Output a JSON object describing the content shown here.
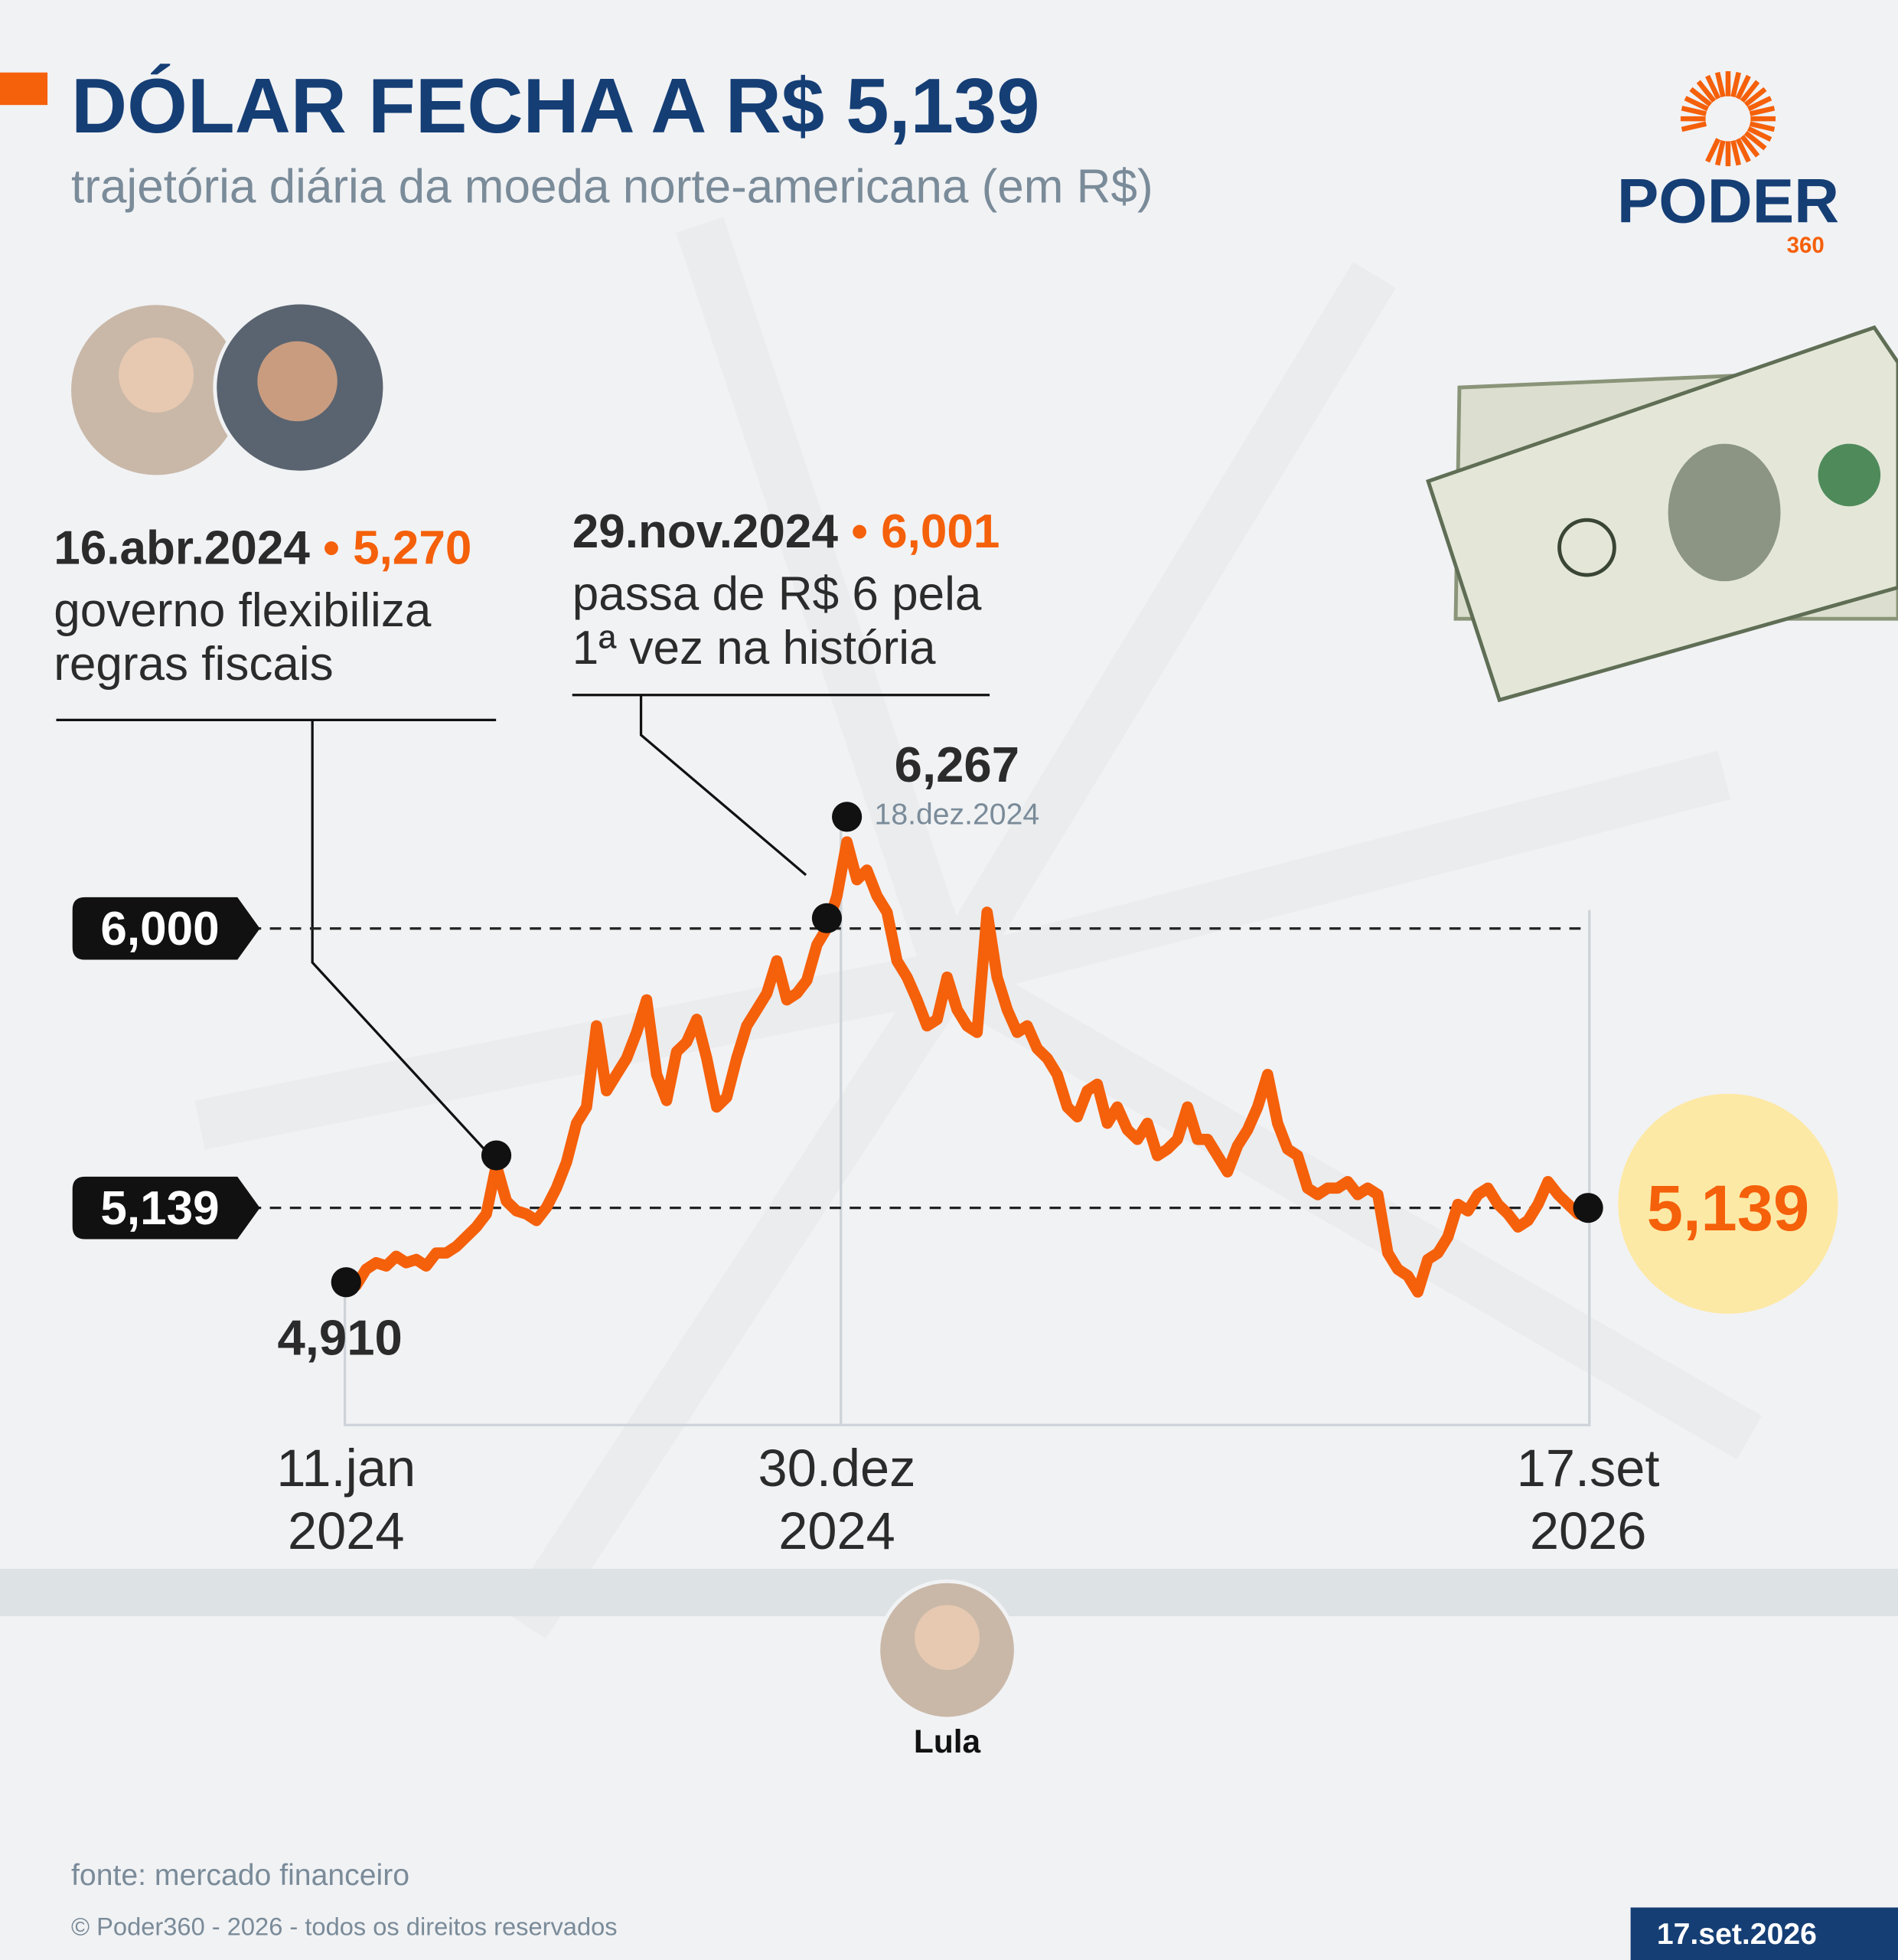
{
  "header": {
    "title": "DÓLAR FECHA A R$ 5,139",
    "subtitle": "trajetória diária da moeda norte-americana (em R$)",
    "logo": "PODER",
    "logo_sub": "360"
  },
  "chart_data": {
    "type": "line",
    "categories": [
      "11.jan\n2024",
      null,
      null,
      null,
      null,
      null,
      null,
      null,
      null,
      null,
      null,
      null,
      null,
      null,
      null,
      null,
      null,
      null,
      null,
      null,
      null,
      null,
      null,
      null,
      null,
      null,
      null,
      null,
      null,
      null,
      null,
      null,
      null,
      null,
      null,
      null,
      null,
      null,
      null,
      null,
      null,
      null,
      null,
      null,
      null,
      null,
      null,
      null,
      null,
      "30.dez\n2024",
      null,
      null,
      null,
      null,
      null,
      null,
      null,
      null,
      null,
      null,
      null,
      null,
      null,
      null,
      null,
      null,
      null,
      null,
      null,
      null,
      null,
      null,
      null,
      null,
      null,
      null,
      null,
      null,
      null,
      null,
      null,
      null,
      null,
      null,
      null,
      null,
      null,
      null,
      null,
      null,
      null,
      null,
      null,
      null,
      null,
      null,
      null,
      null,
      null,
      null,
      null,
      null,
      null,
      null,
      null,
      null,
      null,
      null,
      null,
      null,
      null,
      null,
      null,
      null,
      null,
      null,
      null,
      null,
      null,
      null,
      null,
      null,
      null,
      null,
      "17.set\n2026"
    ],
    "series": [
      {
        "name": "dólar",
        "color": "#f5600a",
        "values": [
          4.91,
          4.9,
          4.95,
          4.97,
          4.96,
          4.99,
          4.97,
          4.98,
          4.96,
          5.0,
          5.0,
          5.02,
          5.05,
          5.08,
          5.12,
          5.27,
          5.16,
          5.13,
          5.12,
          5.1,
          5.14,
          5.2,
          5.28,
          5.4,
          5.45,
          5.7,
          5.5,
          5.55,
          5.6,
          5.68,
          5.78,
          5.55,
          5.47,
          5.62,
          5.65,
          5.72,
          5.6,
          5.45,
          5.48,
          5.6,
          5.7,
          5.75,
          5.8,
          5.9,
          5.78,
          5.8,
          5.84,
          5.95,
          6.001,
          6.1,
          6.267,
          6.15,
          6.18,
          6.1,
          6.05,
          5.9,
          5.85,
          5.78,
          5.7,
          5.72,
          5.85,
          5.75,
          5.7,
          5.68,
          6.05,
          5.85,
          5.75,
          5.68,
          5.7,
          5.63,
          5.6,
          5.55,
          5.45,
          5.42,
          5.5,
          5.52,
          5.4,
          5.45,
          5.38,
          5.35,
          5.4,
          5.3,
          5.32,
          5.35,
          5.45,
          5.35,
          5.35,
          5.3,
          5.25,
          5.33,
          5.38,
          5.45,
          5.55,
          5.4,
          5.32,
          5.3,
          5.2,
          5.18,
          5.2,
          5.2,
          5.22,
          5.18,
          5.2,
          5.18,
          5.0,
          4.95,
          4.93,
          4.88,
          4.98,
          5.0,
          5.05,
          5.15,
          5.13,
          5.18,
          5.2,
          5.15,
          5.12,
          5.08,
          5.1,
          5.15,
          5.22,
          5.18,
          5.15,
          5.12,
          5.139
        ],
        "value_labels": [
          "4,910",
          null,
          null,
          null,
          null,
          null,
          null,
          null,
          null,
          null,
          null,
          null,
          null,
          null,
          null,
          null,
          null,
          null,
          null,
          null,
          null,
          null,
          null,
          null,
          null,
          null,
          null,
          null,
          null,
          null,
          null,
          null,
          null,
          null,
          null,
          null,
          null,
          null,
          null,
          null,
          null,
          null,
          null,
          null,
          null,
          null,
          null,
          null,
          null,
          null,
          "6,267",
          null,
          null,
          null,
          null,
          null,
          null,
          null,
          null,
          null,
          null,
          null,
          null,
          null,
          null,
          null,
          null,
          null,
          null,
          null,
          null,
          null,
          null,
          null,
          null,
          null,
          null,
          null,
          null,
          null,
          null,
          null,
          null,
          null,
          null,
          null,
          null,
          null,
          null,
          null,
          null,
          null,
          null,
          null,
          null,
          null,
          null,
          null,
          null,
          null,
          null,
          null,
          null,
          null,
          null,
          null,
          null,
          null,
          null,
          null,
          null,
          null,
          null,
          null,
          null,
          null,
          null,
          null,
          null,
          null,
          null,
          null,
          null,
          null,
          "5,139"
        ]
      }
    ],
    "peak_date": "18.dez.2024",
    "ylim": [
      4.47,
      6.55
    ],
    "yticks": [
      {
        "value": 6,
        "label": "6,000"
      },
      {
        "value": 5.139,
        "label": "5,139"
      }
    ],
    "annotations": [
      {
        "title": "16.abr.2024",
        "value_label": "5,270",
        "text": "governo flexibiliza\nregras fiscais"
      },
      {
        "title": "29.nov.2024",
        "value_label": "6,001",
        "text": "passa de R$ 6 pela\n1ª vez na história"
      }
    ]
  },
  "photo_caption": "Lula",
  "footer": {
    "source": "fonte: mercado financeiro",
    "copyright": "© Poder360 - 2026 - todos os direitos reservados",
    "date": "17.set.2026"
  }
}
